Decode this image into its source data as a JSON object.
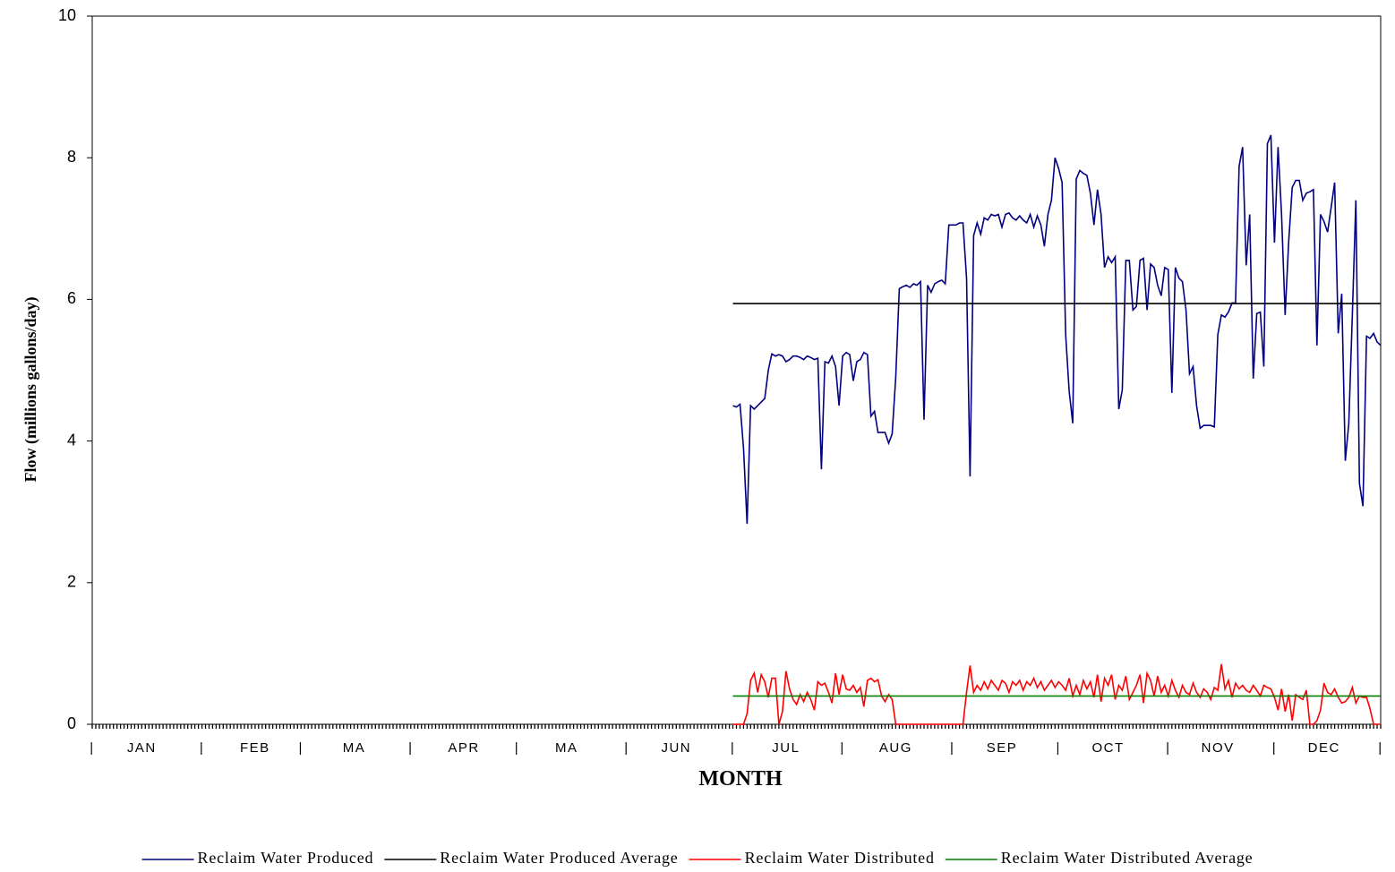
{
  "chart_data": {
    "type": "line",
    "x_label": "MONTH",
    "y_label": "Flow (millions gallons/day)",
    "xlim": [
      1,
      365
    ],
    "ylim": [
      0,
      10
    ],
    "yticks": [
      0,
      2,
      4,
      6,
      8,
      10
    ],
    "xticks": [
      {
        "value": 1,
        "label": "|"
      },
      {
        "value": 15,
        "label": "JAN"
      },
      {
        "value": 32,
        "label": "|"
      },
      {
        "value": 47,
        "label": "FEB"
      },
      {
        "value": 60,
        "label": "|"
      },
      {
        "value": 75,
        "label": "MA"
      },
      {
        "value": 91,
        "label": "|"
      },
      {
        "value": 106,
        "label": "APR"
      },
      {
        "value": 121,
        "label": "|"
      },
      {
        "value": 135,
        "label": "MA"
      },
      {
        "value": 152,
        "label": "|"
      },
      {
        "value": 166,
        "label": "JUN"
      },
      {
        "value": 182,
        "label": "|"
      },
      {
        "value": 197,
        "label": "JUL"
      },
      {
        "value": 213,
        "label": "|"
      },
      {
        "value": 228,
        "label": "AUG"
      },
      {
        "value": 244,
        "label": "|"
      },
      {
        "value": 258,
        "label": "SEP"
      },
      {
        "value": 274,
        "label": "|"
      },
      {
        "value": 288,
        "label": "OCT"
      },
      {
        "value": 305,
        "label": "|"
      },
      {
        "value": 319,
        "label": "NOV"
      },
      {
        "value": 335,
        "label": "|"
      },
      {
        "value": 349,
        "label": "DEC"
      },
      {
        "value": 365,
        "label": "|"
      }
    ],
    "legend": "bottom",
    "x": [
      182,
      183,
      184,
      185,
      186,
      187,
      188,
      189,
      190,
      191,
      192,
      193,
      194,
      195,
      196,
      197,
      198,
      199,
      200,
      201,
      202,
      203,
      204,
      205,
      206,
      207,
      208,
      209,
      210,
      211,
      212,
      213,
      214,
      215,
      216,
      217,
      218,
      219,
      220,
      221,
      222,
      223,
      224,
      225,
      226,
      227,
      228,
      229,
      230,
      231,
      232,
      233,
      234,
      235,
      236,
      237,
      238,
      239,
      240,
      241,
      242,
      243,
      244,
      245,
      246,
      247,
      248,
      249,
      250,
      251,
      252,
      253,
      254,
      255,
      256,
      257,
      258,
      259,
      260,
      261,
      262,
      263,
      264,
      265,
      266,
      267,
      268,
      269,
      270,
      271,
      272,
      273,
      274,
      275,
      276,
      277,
      278,
      279,
      280,
      281,
      282,
      283,
      284,
      285,
      286,
      287,
      288,
      289,
      290,
      291,
      292,
      293,
      294,
      295,
      296,
      297,
      298,
      299,
      300,
      301,
      302,
      303,
      304,
      305,
      306,
      307,
      308,
      309,
      310,
      311,
      312,
      313,
      314,
      315,
      316,
      317,
      318,
      319,
      320,
      321,
      322,
      323,
      324,
      325,
      326,
      327,
      328,
      329,
      330,
      331,
      332,
      333,
      334,
      335,
      336,
      337,
      338,
      339,
      340,
      341,
      342,
      343,
      344,
      345,
      346,
      347,
      348,
      349,
      350,
      351,
      352,
      353,
      354,
      355,
      356,
      357,
      358,
      359,
      360,
      361,
      362,
      363,
      364,
      365
    ],
    "series": [
      {
        "name": "Reclaim Water Produced",
        "color": "#000080",
        "values": [
          4.5,
          4.48,
          4.52,
          3.9,
          2.83,
          4.5,
          4.45,
          4.5,
          4.55,
          4.6,
          5.0,
          5.23,
          5.2,
          5.22,
          5.2,
          5.12,
          5.15,
          5.2,
          5.2,
          5.18,
          5.15,
          5.2,
          5.18,
          5.15,
          5.17,
          3.6,
          5.12,
          5.1,
          5.2,
          5.05,
          4.5,
          5.2,
          5.25,
          5.22,
          4.85,
          5.12,
          5.15,
          5.25,
          5.22,
          4.35,
          4.42,
          4.12,
          4.12,
          4.12,
          3.97,
          4.1,
          4.9,
          6.15,
          6.18,
          6.2,
          6.17,
          6.22,
          6.2,
          6.25,
          4.3,
          6.2,
          6.1,
          6.22,
          6.25,
          6.27,
          6.22,
          7.05,
          7.05,
          7.05,
          7.08,
          7.08,
          6.3,
          3.5,
          6.9,
          7.08,
          6.92,
          7.15,
          7.12,
          7.2,
          7.18,
          7.2,
          7.02,
          7.2,
          7.22,
          7.15,
          7.12,
          7.18,
          7.12,
          7.08,
          7.2,
          7.02,
          7.18,
          7.05,
          6.75,
          7.2,
          7.4,
          8.0,
          7.85,
          7.65,
          5.5,
          4.7,
          4.25,
          7.7,
          7.82,
          7.78,
          7.75,
          7.5,
          7.05,
          7.55,
          7.2,
          6.45,
          6.6,
          6.52,
          6.6,
          4.45,
          4.72,
          6.55,
          6.55,
          5.85,
          5.9,
          6.55,
          6.58,
          5.85,
          6.5,
          6.45,
          6.2,
          6.05,
          6.45,
          6.42,
          4.68,
          6.45,
          6.3,
          6.25,
          5.85,
          4.95,
          5.05,
          4.5,
          4.18,
          4.22,
          4.22,
          4.22,
          4.2,
          5.5,
          5.78,
          5.75,
          5.82,
          5.95,
          5.95,
          7.88,
          8.15,
          6.48,
          7.2,
          4.88,
          5.8,
          5.82,
          5.05,
          8.2,
          8.32,
          6.8,
          8.15,
          7.2,
          5.78,
          6.8,
          7.58,
          7.68,
          7.68,
          7.4,
          7.5,
          7.52,
          7.55,
          5.35,
          7.2,
          7.1,
          6.95,
          7.3,
          7.65,
          5.52,
          6.08,
          3.72,
          4.25,
          5.8,
          7.4,
          3.4,
          3.08,
          5.48,
          5.45,
          5.52,
          5.4,
          5.35
        ]
      },
      {
        "name": "Reclaim Water Produced Average",
        "color": "#000000",
        "x": [
          182,
          365
        ],
        "values": [
          5.94,
          5.94
        ]
      },
      {
        "name": "Reclaim Water Distributed",
        "color": "#ff0000",
        "values": [
          0,
          0,
          0,
          0,
          0.15,
          0.62,
          0.72,
          0.45,
          0.7,
          0.6,
          0.38,
          0.65,
          0.65,
          0,
          0.18,
          0.75,
          0.5,
          0.35,
          0.28,
          0.42,
          0.32,
          0.45,
          0.35,
          0.2,
          0.6,
          0.55,
          0.58,
          0.45,
          0.3,
          0.72,
          0.42,
          0.7,
          0.5,
          0.48,
          0.55,
          0.45,
          0.52,
          0.25,
          0.62,
          0.65,
          0.6,
          0.63,
          0.4,
          0.32,
          0.42,
          0.35,
          0,
          0,
          0,
          0,
          0,
          0,
          0,
          0,
          0,
          0,
          0,
          0,
          0,
          0,
          0,
          0,
          0,
          0,
          0,
          0,
          0.45,
          0.83,
          0.45,
          0.55,
          0.48,
          0.6,
          0.5,
          0.62,
          0.55,
          0.48,
          0.62,
          0.58,
          0.45,
          0.6,
          0.55,
          0.62,
          0.48,
          0.6,
          0.55,
          0.65,
          0.52,
          0.6,
          0.48,
          0.55,
          0.62,
          0.52,
          0.6,
          0.55,
          0.48,
          0.65,
          0.4,
          0.55,
          0.42,
          0.62,
          0.5,
          0.6,
          0.38,
          0.7,
          0.32,
          0.65,
          0.55,
          0.7,
          0.35,
          0.55,
          0.48,
          0.68,
          0.35,
          0.45,
          0.55,
          0.7,
          0.3,
          0.72,
          0.62,
          0.4,
          0.68,
          0.45,
          0.55,
          0.4,
          0.62,
          0.48,
          0.38,
          0.55,
          0.45,
          0.42,
          0.58,
          0.45,
          0.38,
          0.5,
          0.45,
          0.35,
          0.52,
          0.48,
          0.85,
          0.5,
          0.62,
          0.38,
          0.58,
          0.5,
          0.55,
          0.48,
          0.45,
          0.55,
          0.48,
          0.4,
          0.55,
          0.52,
          0.5,
          0.38,
          0.2,
          0.5,
          0.18,
          0.42,
          0.05,
          0.42,
          0.38,
          0.35,
          0.48,
          0,
          0,
          0.05,
          0.2,
          0.58,
          0.45,
          0.42,
          0.5,
          0.38,
          0.3,
          0.32,
          0.38,
          0.52,
          0.3,
          0.4,
          0.38,
          0.38,
          0.22,
          0,
          0,
          0
        ]
      },
      {
        "name": "Reclaim Water Distributed Average",
        "color": "#008000",
        "x": [
          182,
          365
        ],
        "values": [
          0.4,
          0.4
        ]
      }
    ]
  }
}
